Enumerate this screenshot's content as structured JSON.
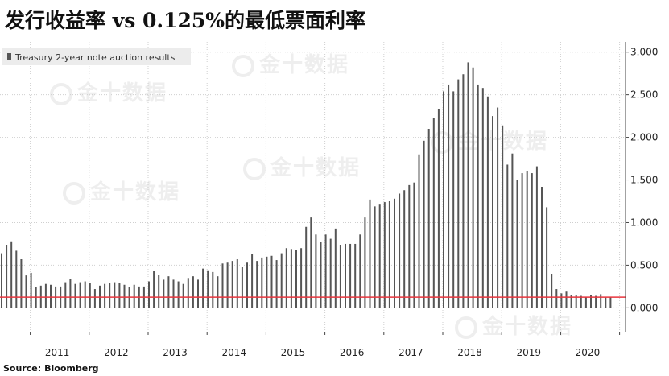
{
  "title": "发行收益率 vs 0.125%的最低票面利率",
  "source": {
    "label": "Source:",
    "value": "Bloomberg"
  },
  "watermark": "金十数据",
  "chart_data": {
    "type": "bar",
    "legend": {
      "label": "Treasury 2-year note auction results",
      "position": "top-left"
    },
    "x_start": "2010-07",
    "xticks": [
      "2011",
      "2012",
      "2013",
      "2014",
      "2015",
      "2016",
      "2017",
      "2018",
      "2019",
      "2020"
    ],
    "yticks": [
      "0.000",
      "0.500",
      "1.000",
      "1.500",
      "2.000",
      "2.500",
      "3.000"
    ],
    "ylim": [
      -0.28,
      3.12
    ],
    "grid": true,
    "reference_line": {
      "value": 0.125,
      "color": "#e8353d"
    },
    "bar_color": "#555555",
    "values": [
      0.64,
      0.74,
      0.78,
      0.67,
      0.57,
      0.38,
      0.41,
      0.24,
      0.26,
      0.28,
      0.27,
      0.25,
      0.25,
      0.3,
      0.34,
      0.28,
      0.3,
      0.31,
      0.29,
      0.22,
      0.26,
      0.28,
      0.29,
      0.3,
      0.29,
      0.27,
      0.24,
      0.27,
      0.25,
      0.25,
      0.31,
      0.43,
      0.39,
      0.33,
      0.37,
      0.33,
      0.31,
      0.28,
      0.35,
      0.37,
      0.33,
      0.46,
      0.44,
      0.42,
      0.37,
      0.52,
      0.53,
      0.55,
      0.57,
      0.48,
      0.53,
      0.63,
      0.55,
      0.59,
      0.6,
      0.61,
      0.56,
      0.64,
      0.7,
      0.69,
      0.68,
      0.7,
      0.95,
      1.06,
      0.86,
      0.77,
      0.86,
      0.81,
      0.93,
      0.74,
      0.75,
      0.75,
      0.75,
      0.86,
      1.06,
      1.27,
      1.19,
      1.22,
      1.24,
      1.25,
      1.28,
      1.34,
      1.38,
      1.44,
      1.47,
      1.8,
      1.96,
      2.1,
      2.23,
      2.33,
      2.54,
      2.62,
      2.54,
      2.68,
      2.74,
      2.88,
      2.82,
      2.62,
      2.58,
      2.48,
      2.25,
      2.35,
      2.14,
      1.68,
      1.81,
      1.5,
      1.58,
      1.6,
      1.58,
      1.66,
      1.42,
      1.18,
      0.4,
      0.22,
      0.17,
      0.19,
      0.15,
      0.15,
      0.14,
      0.13,
      0.15,
      0.14,
      0.16,
      0.12,
      0.13
    ]
  }
}
